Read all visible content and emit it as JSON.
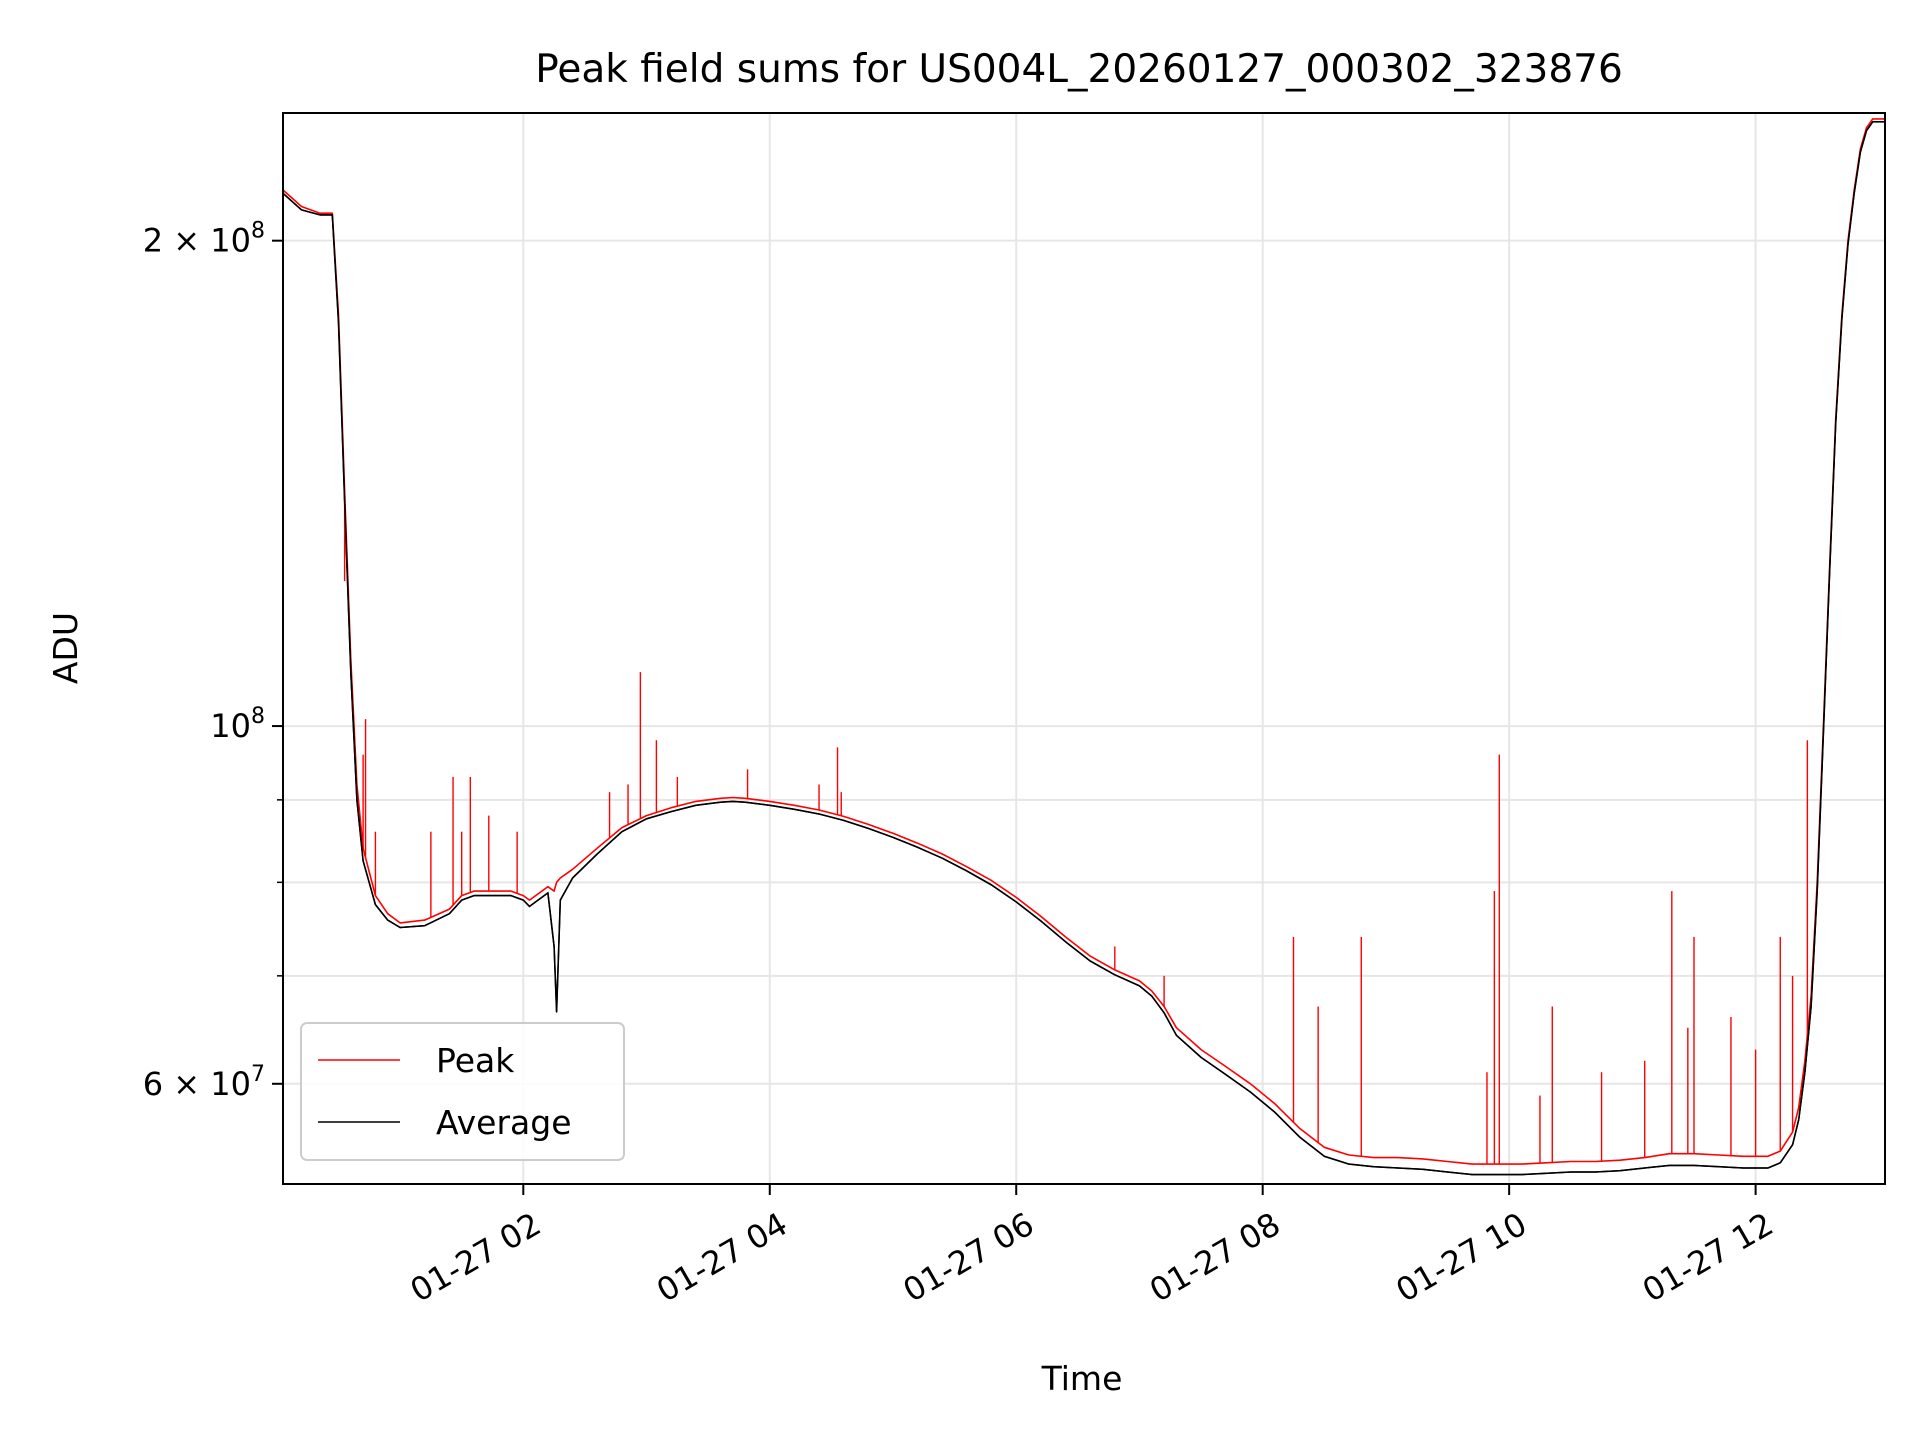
{
  "chart_data": {
    "type": "line",
    "title": "Peak field sums for US004L_20260127_000302_323876",
    "xlabel": "Time",
    "ylabel": "ADU",
    "y_scale": "log",
    "xlim_hours": [
      0.05,
      13.05
    ],
    "ylim": [
      52000000,
      240000000
    ],
    "grid": true,
    "legend_location": "lower-left",
    "x_ticks": [
      {
        "hour": 2,
        "label": "01-27 02"
      },
      {
        "hour": 4,
        "label": "01-27 04"
      },
      {
        "hour": 6,
        "label": "01-27 06"
      },
      {
        "hour": 8,
        "label": "01-27 08"
      },
      {
        "hour": 10,
        "label": "01-27 10"
      },
      {
        "hour": 12,
        "label": "01-27 12"
      }
    ],
    "y_ticks_labeled": [
      {
        "value": 60000000,
        "base": "6 × 10",
        "exp": "7"
      },
      {
        "value": 100000000,
        "base": "10",
        "exp": "8"
      },
      {
        "value": 200000000,
        "base": "2 × 10",
        "exp": "8"
      }
    ],
    "y_ticks_minor": [
      70000000,
      80000000,
      90000000
    ],
    "series": [
      {
        "name": "Peak",
        "color": "#ff0000",
        "x_hours": [
          0.05,
          0.2,
          0.35,
          0.45,
          0.5,
          0.55,
          0.6,
          0.65,
          0.7,
          0.8,
          0.9,
          1.0,
          1.2,
          1.4,
          1.5,
          1.6,
          1.7,
          1.9,
          2.0,
          2.05,
          2.2,
          2.25,
          2.27,
          2.3,
          2.4,
          2.6,
          2.8,
          3.0,
          3.2,
          3.4,
          3.6,
          3.7,
          3.8,
          4.0,
          4.2,
          4.4,
          4.6,
          4.8,
          5.0,
          5.2,
          5.4,
          5.6,
          5.8,
          6.0,
          6.2,
          6.4,
          6.6,
          6.8,
          7.0,
          7.1,
          7.2,
          7.3,
          7.5,
          7.7,
          7.9,
          8.1,
          8.3,
          8.5,
          8.7,
          8.9,
          9.1,
          9.3,
          9.5,
          9.7,
          9.9,
          10.1,
          10.3,
          10.5,
          10.7,
          10.9,
          11.1,
          11.3,
          11.5,
          11.7,
          11.9,
          12.1,
          12.2,
          12.3,
          12.35,
          12.4,
          12.45,
          12.5,
          12.55,
          12.6,
          12.65,
          12.7,
          12.75,
          12.8,
          12.85,
          12.9,
          12.95,
          13.05
        ],
        "values": [
          215000000,
          210000000,
          208000000,
          208000000,
          180000000,
          140000000,
          110000000,
          92000000,
          84000000,
          78500000,
          76500000,
          75500000,
          75800000,
          77000000,
          78500000,
          79000000,
          79000000,
          79000000,
          78500000,
          78000000,
          79500000,
          79000000,
          80000000,
          80500000,
          81500000,
          84000000,
          86500000,
          88000000,
          89000000,
          89800000,
          90200000,
          90300000,
          90200000,
          89800000,
          89300000,
          88700000,
          87900000,
          86900000,
          85800000,
          84600000,
          83300000,
          81800000,
          80200000,
          78300000,
          76200000,
          74000000,
          72000000,
          70600000,
          69500000,
          68500000,
          67000000,
          65000000,
          63000000,
          61500000,
          60000000,
          58300000,
          56300000,
          54800000,
          54200000,
          54000000,
          54000000,
          53900000,
          53700000,
          53500000,
          53500000,
          53500000,
          53600000,
          53700000,
          53700000,
          53800000,
          54000000,
          54300000,
          54300000,
          54200000,
          54100000,
          54100000,
          54500000,
          56000000,
          58000000,
          62000000,
          68000000,
          80000000,
          100000000,
          125000000,
          155000000,
          180000000,
          200000000,
          215000000,
          228000000,
          235000000,
          238000000,
          238000000
        ]
      },
      {
        "name": "Average",
        "color": "#000000",
        "x_hours": [
          0.05,
          0.2,
          0.35,
          0.45,
          0.5,
          0.55,
          0.6,
          0.65,
          0.7,
          0.8,
          0.9,
          1.0,
          1.2,
          1.4,
          1.5,
          1.6,
          1.7,
          1.9,
          2.0,
          2.05,
          2.2,
          2.25,
          2.27,
          2.3,
          2.4,
          2.6,
          2.8,
          3.0,
          3.2,
          3.4,
          3.6,
          3.7,
          3.8,
          4.0,
          4.2,
          4.4,
          4.6,
          4.8,
          5.0,
          5.2,
          5.4,
          5.6,
          5.8,
          6.0,
          6.2,
          6.4,
          6.6,
          6.8,
          7.0,
          7.1,
          7.2,
          7.3,
          7.5,
          7.7,
          7.9,
          8.1,
          8.3,
          8.5,
          8.7,
          8.9,
          9.1,
          9.3,
          9.5,
          9.7,
          9.9,
          10.1,
          10.3,
          10.5,
          10.7,
          10.9,
          11.1,
          11.3,
          11.5,
          11.7,
          11.9,
          12.1,
          12.2,
          12.3,
          12.35,
          12.4,
          12.45,
          12.5,
          12.55,
          12.6,
          12.65,
          12.7,
          12.75,
          12.8,
          12.85,
          12.9,
          12.95,
          13.05
        ],
        "values": [
          214000000,
          209000000,
          207500000,
          207500000,
          178000000,
          138000000,
          108000000,
          90000000,
          82500000,
          77500000,
          75800000,
          75000000,
          75200000,
          76500000,
          78000000,
          78500000,
          78500000,
          78500000,
          78000000,
          77300000,
          78800000,
          73000000,
          66500000,
          78000000,
          80500000,
          83300000,
          86000000,
          87600000,
          88500000,
          89300000,
          89700000,
          89800000,
          89700000,
          89300000,
          88800000,
          88200000,
          87400000,
          86400000,
          85300000,
          84100000,
          82800000,
          81300000,
          79700000,
          77800000,
          75700000,
          73500000,
          71500000,
          70100000,
          69000000,
          68000000,
          66400000,
          64300000,
          62300000,
          60800000,
          59300000,
          57600000,
          55600000,
          54100000,
          53500000,
          53300000,
          53200000,
          53100000,
          52900000,
          52700000,
          52700000,
          52700000,
          52800000,
          52900000,
          52900000,
          53000000,
          53200000,
          53400000,
          53400000,
          53300000,
          53200000,
          53200000,
          53600000,
          55000000,
          57000000,
          61000000,
          67000000,
          79000000,
          99000000,
          124000000,
          154000000,
          179000000,
          199000000,
          214000000,
          227000000,
          234000000,
          237000000,
          237000000
        ]
      }
    ],
    "spikes": {
      "series": "Peak",
      "points": [
        {
          "hour": 0.55,
          "value": 123000000
        },
        {
          "hour": 0.7,
          "value": 96000000
        },
        {
          "hour": 0.72,
          "value": 101000000
        },
        {
          "hour": 0.8,
          "value": 86000000
        },
        {
          "hour": 1.25,
          "value": 86000000
        },
        {
          "hour": 1.43,
          "value": 93000000
        },
        {
          "hour": 1.5,
          "value": 86000000
        },
        {
          "hour": 1.57,
          "value": 93000000
        },
        {
          "hour": 1.72,
          "value": 88000000
        },
        {
          "hour": 1.95,
          "value": 86000000
        },
        {
          "hour": 2.7,
          "value": 91000000
        },
        {
          "hour": 2.85,
          "value": 92000000
        },
        {
          "hour": 2.95,
          "value": 108000000
        },
        {
          "hour": 3.08,
          "value": 98000000
        },
        {
          "hour": 3.25,
          "value": 93000000
        },
        {
          "hour": 3.82,
          "value": 94000000
        },
        {
          "hour": 4.4,
          "value": 92000000
        },
        {
          "hour": 4.55,
          "value": 97000000
        },
        {
          "hour": 4.58,
          "value": 91000000
        },
        {
          "hour": 6.8,
          "value": 73000000
        },
        {
          "hour": 7.2,
          "value": 70000000
        },
        {
          "hour": 8.25,
          "value": 74000000
        },
        {
          "hour": 8.45,
          "value": 67000000
        },
        {
          "hour": 8.8,
          "value": 74000000
        },
        {
          "hour": 9.82,
          "value": 61000000
        },
        {
          "hour": 9.88,
          "value": 79000000
        },
        {
          "hour": 9.92,
          "value": 96000000
        },
        {
          "hour": 10.25,
          "value": 59000000
        },
        {
          "hour": 10.35,
          "value": 67000000
        },
        {
          "hour": 10.75,
          "value": 61000000
        },
        {
          "hour": 11.1,
          "value": 62000000
        },
        {
          "hour": 11.32,
          "value": 79000000
        },
        {
          "hour": 11.45,
          "value": 65000000
        },
        {
          "hour": 11.5,
          "value": 74000000
        },
        {
          "hour": 11.8,
          "value": 66000000
        },
        {
          "hour": 12.0,
          "value": 63000000
        },
        {
          "hour": 12.2,
          "value": 74000000
        },
        {
          "hour": 12.3,
          "value": 70000000
        },
        {
          "hour": 12.42,
          "value": 98000000
        }
      ]
    },
    "legend": [
      {
        "label": "Peak",
        "color": "#ff0000"
      },
      {
        "label": "Average",
        "color": "#000000"
      }
    ]
  }
}
